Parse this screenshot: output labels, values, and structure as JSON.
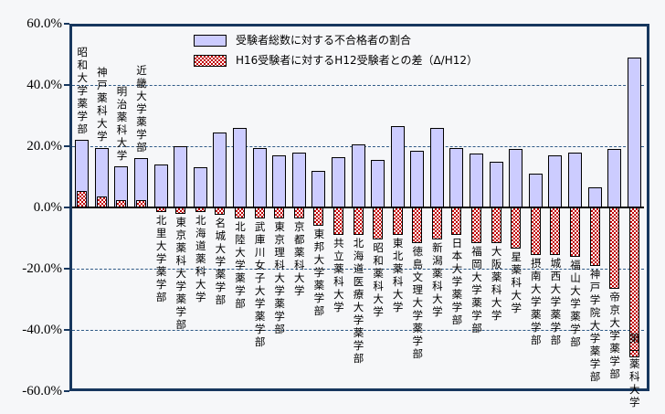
{
  "chart_data": {
    "type": "bar",
    "title": "",
    "categories": [
      "昭和大学薬学部",
      "神戸薬科大学",
      "明治薬科大学",
      "近畿大学薬学部",
      "北里大学薬学部",
      "東京薬科大学薬学部",
      "北海道薬科大学",
      "名城大学薬学部",
      "北陸大学薬学部",
      "武庫川女子大学薬学部",
      "東京理科大学薬学部",
      "京都薬科大学",
      "東邦大学薬学部",
      "共立薬科大学",
      "北海道医療大学薬学部",
      "昭和薬科大学",
      "東北薬科大学",
      "徳島文理大学薬学部",
      "新潟薬科大学",
      "日本大学薬学部",
      "福岡大学薬学部",
      "大阪薬科大学",
      "星薬科大学",
      "摂南大学薬学部",
      "城西大学薬学部",
      "福山大学薬学部",
      "神戸学院大学薬学部",
      "帝京大学薬学部",
      "第一薬科大学"
    ],
    "series": [
      {
        "name": "受験者総数に対する不合格者の割合",
        "color": "#CCCCFF",
        "values": [
          22.0,
          19.5,
          13.5,
          16.0,
          14.0,
          20.0,
          13.0,
          24.5,
          26.0,
          19.5,
          17.0,
          18.0,
          12.0,
          16.5,
          20.5,
          15.5,
          26.5,
          18.5,
          26.0,
          19.5,
          17.5,
          15.0,
          19.0,
          11.0,
          17.0,
          18.0,
          6.5,
          19.0,
          49.0
        ]
      },
      {
        "name": "H16受験者に対するH12受験者との差（Δ/H12）",
        "color": "#C00000",
        "pattern": "checker",
        "values": [
          5.5,
          3.5,
          2.5,
          2.5,
          -1.5,
          -2.0,
          -1.5,
          -2.5,
          -3.5,
          -3.5,
          -3.5,
          -3.5,
          -6.0,
          -9.0,
          -9.0,
          -10.5,
          -9.0,
          -11.5,
          -10.5,
          -9.0,
          -11.5,
          -11.5,
          -13.5,
          -15.5,
          -15.5,
          -16.0,
          -19.0,
          -26.5,
          -49.0
        ]
      }
    ],
    "ylim": [
      -60,
      60
    ],
    "yticks": [
      "60.0%",
      "40.0%",
      "20.0%",
      "0.0%",
      "-20.0%",
      "-40.0%",
      "-60.0%"
    ],
    "ytick_values": [
      60,
      40,
      20,
      0,
      -20,
      -40,
      -60
    ],
    "gridlines": [
      40,
      20,
      -20,
      -40
    ],
    "grid_style": "dashed",
    "legend_position": "top-inside",
    "xlabel": "",
    "ylabel": ""
  },
  "colors": {
    "fail_bar_fill": "#CCCCFF",
    "diff_bar_red": "#C00000",
    "plot_border": "#17375E",
    "gridline": "#2F5A87",
    "background": "#F6F7F9"
  }
}
